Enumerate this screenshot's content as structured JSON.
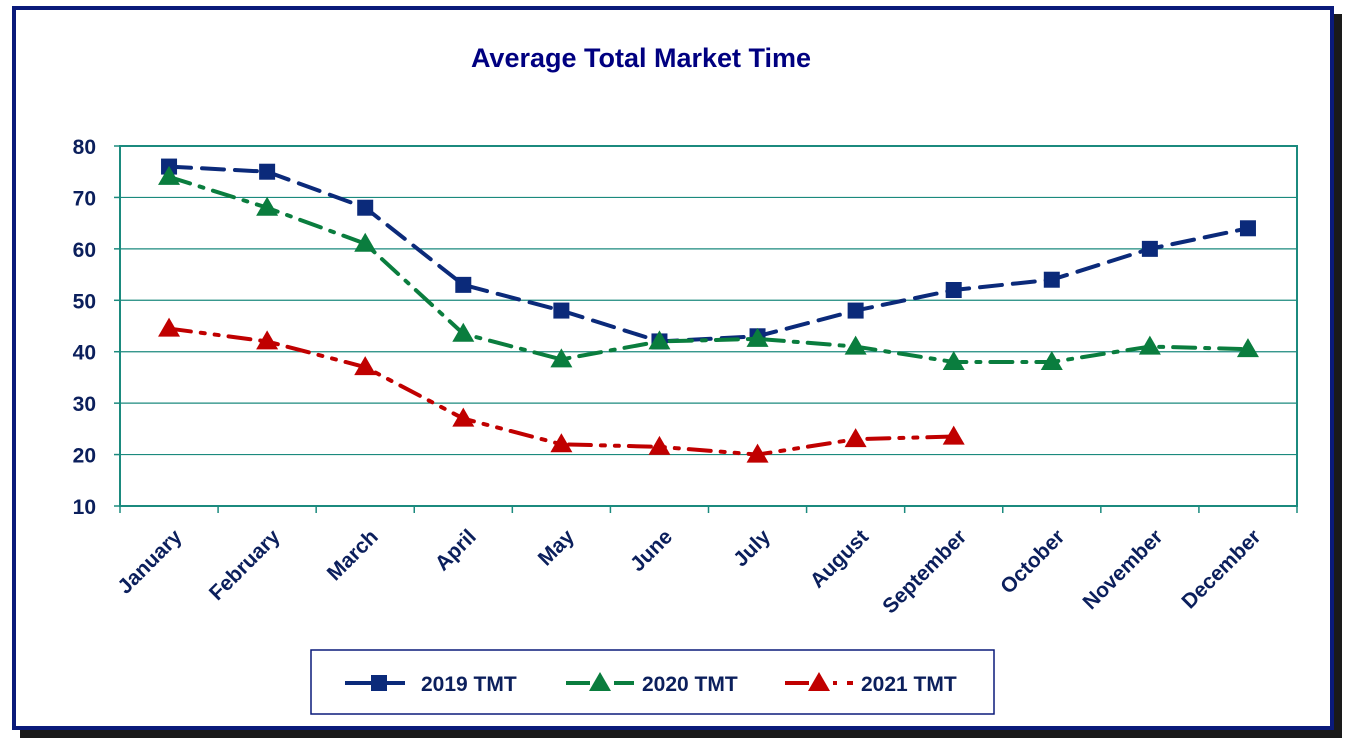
{
  "colors": {
    "title": "#000080",
    "frame_border": "#0a1a7a",
    "frame_shadow": "#1a1a1a",
    "plot_border": "#1b8a7e",
    "gridline": "#1b8a7e",
    "axis_text": "#0b1f5c"
  },
  "chart_data": {
    "type": "line",
    "title": "Average Total Market Time",
    "xlabel": "",
    "ylabel": "",
    "ylim": [
      10,
      80
    ],
    "yticks": [
      "10",
      "20",
      "30",
      "40",
      "50",
      "60",
      "70",
      "80"
    ],
    "categories": [
      "January",
      "February",
      "March",
      "April",
      "May",
      "June",
      "July",
      "August",
      "September",
      "October",
      "November",
      "December"
    ],
    "grid": true,
    "legend_position": "bottom-center",
    "series": [
      {
        "name": "2019 TMT",
        "color": "#0b2a7a",
        "marker": "square",
        "dash": "long-dash",
        "values": [
          76,
          75,
          68,
          53,
          48,
          42,
          43,
          48,
          52,
          54,
          60,
          64
        ]
      },
      {
        "name": "2020 TMT",
        "color": "#0a7d3e",
        "marker": "triangle",
        "dash": "dash-dot",
        "values": [
          74,
          68,
          61,
          43.5,
          38.5,
          42,
          42.5,
          41,
          38,
          38,
          41,
          40.5
        ]
      },
      {
        "name": "2021 TMT",
        "color": "#c00000",
        "marker": "triangle",
        "dash": "dash-dot-dot",
        "values": [
          44.5,
          42,
          37,
          27,
          22,
          21.5,
          20,
          23,
          23.5,
          null,
          null,
          null
        ]
      }
    ]
  }
}
